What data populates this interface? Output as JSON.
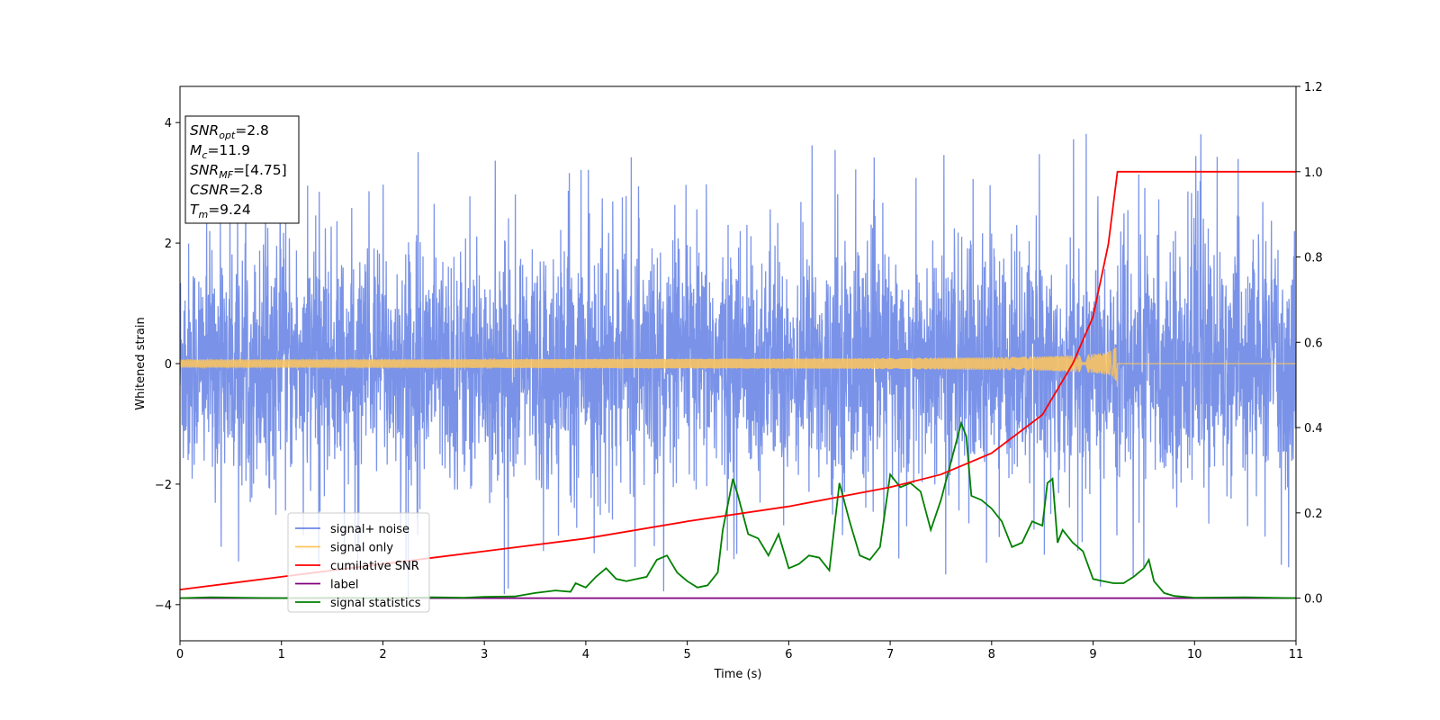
{
  "chart_data": {
    "type": "line",
    "xlabel": "Time (s)",
    "ylabel_left": "Whitened strain",
    "ylabel_right": "",
    "xlim": [
      0,
      11
    ],
    "ylim_left": [
      -4.6,
      4.6
    ],
    "ylim_right": [
      -0.1,
      1.2
    ],
    "x_ticks": [
      "0",
      "1",
      "2",
      "3",
      "4",
      "5",
      "6",
      "7",
      "8",
      "9",
      "10",
      "11"
    ],
    "y_left_ticks": [
      "−4",
      "−2",
      "0",
      "2",
      "4"
    ],
    "y_right_ticks": [
      "0.0",
      "0.2",
      "0.4",
      "0.6",
      "0.8",
      "1.0",
      "1.2"
    ],
    "grid": false,
    "legend_position": "lower-left",
    "info_box": {
      "lines": [
        {
          "main": "SNR",
          "sub": "opt",
          "value": "=2.8"
        },
        {
          "main": "M",
          "sub": "c",
          "value": "=11.9"
        },
        {
          "main": "SNR",
          "sub": "MF",
          "value": "=[4.75]"
        },
        {
          "main": "CSNR",
          "sub": "",
          "value": "=2.8"
        },
        {
          "main": "T",
          "sub": "m",
          "value": "=9.24"
        }
      ]
    },
    "series": [
      {
        "name": "signal+ noise",
        "axis": "left",
        "color": "#6b87e6",
        "noise_envelope": 1.6,
        "spike_max": 4.15
      },
      {
        "name": "signal only",
        "axis": "left",
        "color": "#ffc65a",
        "merger_time": 9.24,
        "peak_amplitude": 0.45
      },
      {
        "name": "cumilative SNR",
        "axis": "right",
        "color": "#ff0000",
        "x": [
          0,
          1,
          2,
          3,
          4,
          5,
          6,
          7,
          7.5,
          8,
          8.5,
          8.8,
          9.0,
          9.15,
          9.24,
          11
        ],
        "y": [
          0.02,
          0.05,
          0.08,
          0.11,
          0.14,
          0.18,
          0.215,
          0.26,
          0.29,
          0.34,
          0.43,
          0.55,
          0.66,
          0.83,
          1.0,
          1.0
        ]
      },
      {
        "name": "label",
        "axis": "right",
        "color": "#800080",
        "x": [
          0,
          11
        ],
        "y": [
          0.0,
          0.0
        ]
      },
      {
        "name": "signal statistics",
        "axis": "right",
        "color": "#008000",
        "x": [
          0,
          0.3,
          0.6,
          1,
          1.5,
          2,
          2.5,
          2.8,
          3,
          3.3,
          3.5,
          3.7,
          3.85,
          3.9,
          4,
          4.1,
          4.2,
          4.3,
          4.4,
          4.6,
          4.7,
          4.8,
          4.9,
          5,
          5.1,
          5.2,
          5.3,
          5.35,
          5.45,
          5.5,
          5.6,
          5.7,
          5.8,
          5.9,
          6,
          6.1,
          6.2,
          6.3,
          6.4,
          6.5,
          6.6,
          6.7,
          6.8,
          6.9,
          7.0,
          7.1,
          7.2,
          7.3,
          7.4,
          7.5,
          7.6,
          7.7,
          7.75,
          7.8,
          7.9,
          8.0,
          8.1,
          8.2,
          8.3,
          8.4,
          8.5,
          8.55,
          8.6,
          8.65,
          8.7,
          8.8,
          8.9,
          9.0,
          9.1,
          9.2,
          9.3,
          9.4,
          9.5,
          9.55,
          9.6,
          9.7,
          9.8,
          10,
          10.5,
          11
        ],
        "y": [
          0,
          0.002,
          0.001,
          0,
          0.001,
          0,
          0.002,
          0.001,
          0.003,
          0.004,
          0.012,
          0.018,
          0.015,
          0.035,
          0.025,
          0.05,
          0.07,
          0.045,
          0.04,
          0.05,
          0.09,
          0.1,
          0.06,
          0.04,
          0.025,
          0.03,
          0.06,
          0.16,
          0.28,
          0.24,
          0.15,
          0.14,
          0.1,
          0.15,
          0.07,
          0.08,
          0.1,
          0.095,
          0.065,
          0.27,
          0.18,
          0.1,
          0.09,
          0.12,
          0.29,
          0.26,
          0.27,
          0.25,
          0.16,
          0.23,
          0.32,
          0.41,
          0.38,
          0.24,
          0.23,
          0.21,
          0.18,
          0.12,
          0.13,
          0.18,
          0.17,
          0.27,
          0.28,
          0.13,
          0.16,
          0.13,
          0.11,
          0.045,
          0.04,
          0.035,
          0.035,
          0.05,
          0.07,
          0.09,
          0.04,
          0.012,
          0.005,
          0.001,
          0.002,
          0
        ]
      }
    ]
  }
}
